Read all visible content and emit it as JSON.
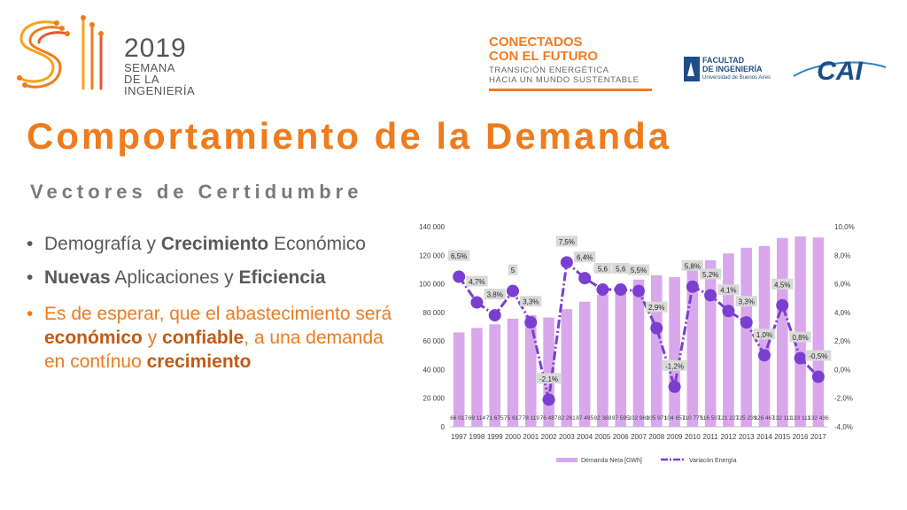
{
  "header": {
    "brand_year": "2019",
    "brand_line1": "SEMANA",
    "brand_line2": "DE LA",
    "brand_line3": "INGENIERÍA",
    "campaign_line1": "CONECTADOS",
    "campaign_line2": "CON EL FUTURO",
    "campaign_sub1": "TRANSICIÓN ENERGÉTICA",
    "campaign_sub2": "HACIA UN MUNDO SUSTENTABLE",
    "faculty_line1": "FACULTAD",
    "faculty_line2": "DE INGENIERÍA",
    "faculty_sub": "Universidad de Buenos Aires",
    "cai_logo_text": "CAI"
  },
  "slide": {
    "title": "Comportamiento de la Demanda",
    "subtitle": "Vectores de Certidumbre",
    "bullets": [
      {
        "dot": "•",
        "p1": "Demografía y ",
        "b1": "Crecimiento",
        "p2": " Económico",
        "b2": "",
        "p3": ""
      },
      {
        "dot": "•",
        "p1": "",
        "b1": "Nuevas",
        "p2": " Aplicaciones y ",
        "b2": "Eficiencia",
        "p3": ""
      },
      {
        "dot": "•",
        "p1": "Es de esperar, que el abastecimiento será ",
        "b1": "económico",
        "p2": " y ",
        "b2": "confiable",
        "p3": ", a una demanda en contínuo ",
        "b3": "crecimiento"
      }
    ]
  },
  "colors": {
    "orange": "#ee7b1c",
    "bar": "#d9a7ec",
    "line": "#7a3fd1",
    "gray_text": "#595959"
  },
  "chart_data": {
    "type": "bar",
    "categories": [
      "1997",
      "1998",
      "1999",
      "2000",
      "2001",
      "2002",
      "2003",
      "2004",
      "2005",
      "2006",
      "2007",
      "2008",
      "2009",
      "2010",
      "2011",
      "2012",
      "2013",
      "2014",
      "2015",
      "2016",
      "2017"
    ],
    "series": [
      {
        "name": "Demanda Neta [GWh]",
        "type": "bar",
        "axis": "left",
        "values": [
          66017,
          69114,
          71675,
          75617,
          78119,
          76487,
          82261,
          87495,
          92388,
          97595,
          102969,
          105971,
          104657,
          110775,
          116507,
          121227,
          125239,
          126467,
          132111,
          133111,
          132436
        ],
        "labels": [
          "66 017",
          "69 114",
          "71 675",
          "75 617",
          "78 119",
          "76 487",
          "82 261",
          "87 495",
          "92 388",
          "97 595",
          "102 969",
          "105 971",
          "104 657",
          "110 775",
          "116 507",
          "121 227",
          "125 239",
          "126 467",
          "132 111",
          "133 111",
          "132 436"
        ]
      },
      {
        "name": "Variacón Energía",
        "type": "line",
        "axis": "right",
        "values": [
          6.5,
          4.7,
          3.8,
          5.5,
          3.3,
          -2.1,
          7.5,
          6.4,
          5.6,
          5.6,
          5.5,
          2.9,
          -1.2,
          5.8,
          5.2,
          4.1,
          3.3,
          1.0,
          4.5,
          0.8,
          -0.5
        ],
        "labels": [
          "6,5%",
          "4,7%",
          "3,8%",
          "5",
          "3,3%",
          "-2,1%",
          "7,5%",
          "6,4%",
          "5,6",
          "5,6",
          "5,5%",
          "2,9%",
          "-1,2%",
          "5,8%",
          "5,2%",
          "4,1%",
          "3,3%",
          "1,0%",
          "4,5%",
          "0,8%",
          "-0,5%"
        ]
      }
    ],
    "ylim": [
      0,
      140000
    ],
    "yticks": [
      "0",
      "20 000",
      "40 000",
      "60 000",
      "80 000",
      "100 000",
      "120 000",
      "140 000"
    ],
    "y2lim": [
      -4.0,
      10.0
    ],
    "y2ticks": [
      "-4,0%",
      "-2,0%",
      "0,0%",
      "2,0%",
      "4,0%",
      "6,0%",
      "8,0%",
      "10,0%"
    ],
    "legend_position": "bottom"
  }
}
